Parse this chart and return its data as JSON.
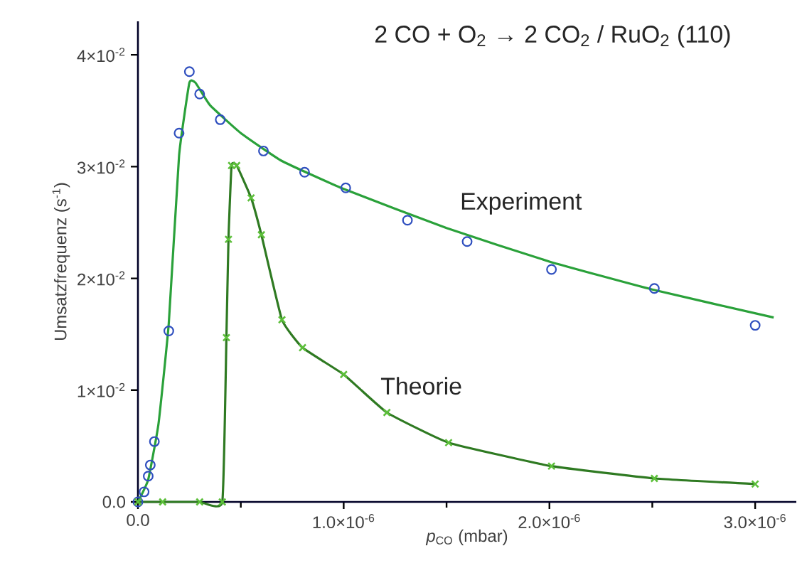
{
  "chart_data": {
    "type": "scatter",
    "title": "2 CO + O$_{2}$ → 2 CO$_{2}$ / RuO$_{2}$ (110)",
    "xlabel": "*p*$_{CO}$ (mbar)",
    "ylabel": "Umsatzfrequenz (s$^{-1}$)",
    "xlim": [
      0,
      3.2e-06
    ],
    "ylim": [
      0,
      0.043
    ],
    "xticks": [
      {
        "value": 0,
        "label": "0.0"
      },
      {
        "value": 1e-06,
        "label": "1.0×10$^{-6}$"
      },
      {
        "value": 2e-06,
        "label": "2.0×10$^{-6}$"
      },
      {
        "value": 3e-06,
        "label": "3.0×10$^{-6}$"
      }
    ],
    "yticks": [
      {
        "value": 0,
        "label": "0.0"
      },
      {
        "value": 0.01,
        "label": "1×10$^{-2}$"
      },
      {
        "value": 0.02,
        "label": "2×10$^{-2}$"
      },
      {
        "value": 0.03,
        "label": "3×10$^{-2}$"
      },
      {
        "value": 0.04,
        "label": "4×10$^{-2}$"
      }
    ],
    "grid": false,
    "legend": false,
    "series": [
      {
        "type": "line",
        "name": "Experiment",
        "color": "#2aa13a",
        "marker": "none",
        "x": [
          0,
          5e-08,
          1e-07,
          1.5e-07,
          2e-07,
          2.5e-07,
          2.8e-07,
          3.5e-07,
          5e-07,
          7e-07,
          1e-06,
          1.5e-06,
          2e-06,
          2.5e-06,
          3.09e-06
        ],
        "values": [
          0,
          0.002,
          0.007,
          0.016,
          0.031,
          0.0375,
          0.0375,
          0.0355,
          0.033,
          0.0305,
          0.028,
          0.0245,
          0.0215,
          0.019,
          0.0165
        ]
      },
      {
        "color": "#2f4fbf",
        "marker": "circle",
        "x": [
          0,
          3e-08,
          5e-08,
          6e-08,
          8e-08,
          1.5e-07,
          2e-07,
          2.5e-07,
          3e-07,
          4e-07,
          6.1e-07,
          8.1e-07,
          1.01e-06,
          1.31e-06,
          1.6e-06,
          2.01e-06,
          2.51e-06,
          3e-06
        ],
        "values": [
          0,
          0.0009,
          0.0023,
          0.0033,
          0.0054,
          0.0153,
          0.033,
          0.0385,
          0.0365,
          0.0342,
          0.0314,
          0.0295,
          0.0281,
          0.0252,
          0.0233,
          0.0208,
          0.0191,
          0.0158
        ]
      },
      {
        "type": "line",
        "name": "Theorie",
        "color": "#2f7a22",
        "marker": "none",
        "x": [
          0,
          1.2e-07,
          3e-07,
          4.1e-07,
          4.3e-07,
          4.4e-07,
          4.55e-07,
          4.8e-07,
          5.5e-07,
          6e-07,
          7e-07,
          8e-07,
          1e-06,
          1.21e-06,
          1.51e-06,
          2.01e-06,
          2.51e-06,
          3e-06
        ],
        "values": [
          0,
          0,
          0,
          0,
          0.0147,
          0.0235,
          0.0301,
          0.0301,
          0.0272,
          0.0239,
          0.0163,
          0.0138,
          0.0114,
          0.008,
          0.0053,
          0.0032,
          0.0021,
          0.0016
        ]
      },
      {
        "color": "#5cbf3a",
        "marker": "cross",
        "x": [
          0,
          1.2e-07,
          3e-07,
          4.1e-07,
          4.3e-07,
          4.4e-07,
          4.55e-07,
          4.8e-07,
          5.5e-07,
          6e-07,
          7e-07,
          8e-07,
          1e-06,
          1.21e-06,
          1.51e-06,
          2.01e-06,
          2.51e-06,
          3e-06
        ],
        "values": [
          0,
          0,
          0,
          0,
          0.0147,
          0.0235,
          0.0301,
          0.0301,
          0.0272,
          0.0239,
          0.0163,
          0.0138,
          0.0114,
          0.008,
          0.0053,
          0.0032,
          0.0021,
          0.0016
        ]
      }
    ]
  }
}
